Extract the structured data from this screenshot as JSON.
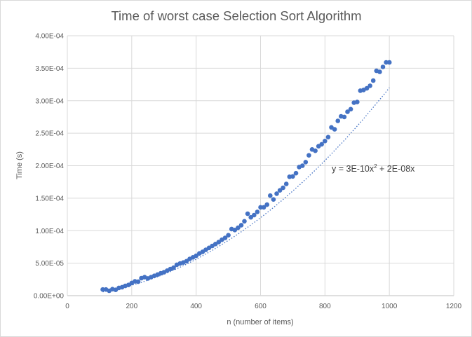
{
  "chart_data": {
    "type": "scatter",
    "title": "Time of worst case Selection Sort Algorithm",
    "xlabel": "n (number of items)",
    "ylabel": "Time (s)",
    "xlim": [
      0,
      1200
    ],
    "ylim": [
      0,
      0.0004
    ],
    "x_ticks": [
      "0",
      "200",
      "400",
      "600",
      "800",
      "1000",
      "1200"
    ],
    "y_ticks": [
      "0.00E+00",
      "5.00E-05",
      "1.00E-04",
      "1.50E-04",
      "2.00E-04",
      "2.50E-04",
      "3.00E-04",
      "3.50E-04",
      "4.00E-04"
    ],
    "grid": true,
    "marker_color": "#4472C4",
    "trendline": {
      "type": "polynomial",
      "style": "dotted",
      "equation_prefix": "y = 3E-10x",
      "equation_exponent": "2",
      "equation_suffix": " + 2E-08x",
      "coefficients": {
        "a": 3e-10,
        "b": 2e-08
      }
    },
    "series": [
      {
        "x": [
          110,
          120,
          130,
          140,
          150,
          160,
          170,
          180,
          190,
          200,
          210,
          220,
          230,
          240,
          250,
          260,
          270,
          280,
          290,
          300,
          310,
          320,
          330,
          340,
          350,
          360,
          370,
          380,
          390,
          400,
          410,
          420,
          430,
          440,
          450,
          460,
          470,
          480,
          490,
          500,
          510,
          520,
          530,
          540,
          550,
          560,
          570,
          580,
          590,
          600,
          610,
          620,
          630,
          640,
          650,
          660,
          670,
          680,
          690,
          700,
          710,
          720,
          730,
          740,
          750,
          760,
          770,
          780,
          790,
          800,
          810,
          820,
          830,
          840,
          850,
          860,
          870,
          880,
          890,
          900,
          910,
          920,
          930,
          940,
          950,
          960,
          970,
          980,
          990,
          1000
        ],
        "y": [
          9.5e-06,
          9.5e-06,
          7.5e-06,
          1e-05,
          9e-06,
          1.2e-05,
          1.3e-05,
          1.5e-05,
          1.65e-05,
          1.95e-05,
          2.2e-05,
          2.15e-05,
          2.7e-05,
          2.85e-05,
          2.65e-05,
          2.85e-05,
          3.05e-05,
          3.25e-05,
          3.45e-05,
          3.6e-05,
          3.85e-05,
          4.1e-05,
          4.3e-05,
          4.75e-05,
          4.95e-05,
          5.1e-05,
          5.3e-05,
          5.65e-05,
          5.9e-05,
          6.15e-05,
          6.5e-05,
          6.75e-05,
          7.05e-05,
          7.35e-05,
          7.65e-05,
          7.95e-05,
          8.25e-05,
          8.6e-05,
          8.9e-05,
          9.3e-05,
          0.0001025,
          0.000101,
          0.0001045,
          0.0001085,
          0.0001145,
          0.000126,
          0.0001205,
          0.000124,
          0.000129,
          0.000136,
          0.000136,
          0.00014,
          0.000154,
          0.000148,
          0.000157,
          0.000162,
          0.000166,
          0.000172,
          0.000183,
          0.0001835,
          0.0001885,
          0.000198,
          0.0002,
          0.0002055,
          0.000216,
          0.000225,
          0.000223,
          0.00023,
          0.000233,
          0.000238,
          0.000244,
          0.000259,
          0.000256,
          0.000269,
          0.000276,
          0.000275,
          0.000283,
          0.000287,
          0.000297,
          0.000298,
          0.0003155,
          0.0003165,
          0.000319,
          0.000323,
          0.000331,
          0.000346,
          0.0003445,
          0.000352,
          0.000359,
          0.000359
        ]
      }
    ]
  }
}
